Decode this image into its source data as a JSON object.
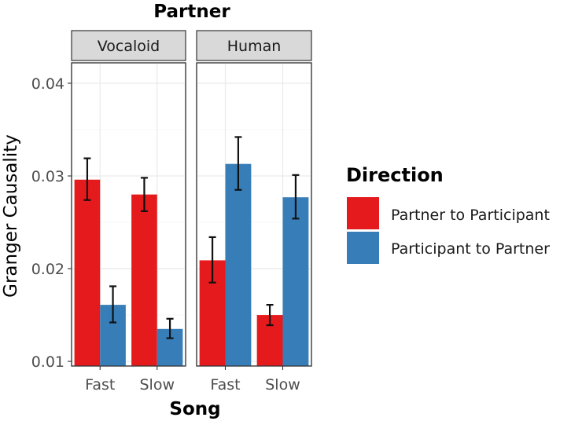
{
  "chart_data": {
    "type": "bar",
    "facet_title": "Partner",
    "panels": [
      "Vocaloid",
      "Human"
    ],
    "categories": [
      "Fast",
      "Slow"
    ],
    "xlabel": "Song",
    "ylabel": "Granger Causality",
    "ylim": [
      0.0095,
      0.0422
    ],
    "yticks": [
      "0.01",
      "0.02",
      "0.03",
      "0.04"
    ],
    "grid": true,
    "legend": {
      "title": "Direction",
      "placement": "right",
      "entries": [
        {
          "label": "Partner to Participant",
          "color": "#e41a1c"
        },
        {
          "label": "Participant to Partner",
          "color": "#377eb8"
        }
      ]
    },
    "series": [
      {
        "name": "Partner to Participant",
        "color": "#e41a1c",
        "panels": [
          {
            "panel": "Vocaloid",
            "values": [
              0.0296,
              0.028
            ],
            "errors": [
              [
                0.0274,
                0.0319
              ],
              [
                0.0262,
                0.0298
              ]
            ]
          },
          {
            "panel": "Human",
            "values": [
              0.0209,
              0.015
            ],
            "errors": [
              [
                0.0185,
                0.0234
              ],
              [
                0.0139,
                0.0161
              ]
            ]
          }
        ]
      },
      {
        "name": "Participant to Partner",
        "color": "#377eb8",
        "panels": [
          {
            "panel": "Vocaloid",
            "values": [
              0.0161,
              0.0135
            ],
            "errors": [
              [
                0.0142,
                0.0181
              ],
              [
                0.0125,
                0.0146
              ]
            ]
          },
          {
            "panel": "Human",
            "values": [
              0.0313,
              0.0277
            ],
            "errors": [
              [
                0.0285,
                0.0342
              ],
              [
                0.0254,
                0.0301
              ]
            ]
          }
        ]
      }
    ]
  }
}
